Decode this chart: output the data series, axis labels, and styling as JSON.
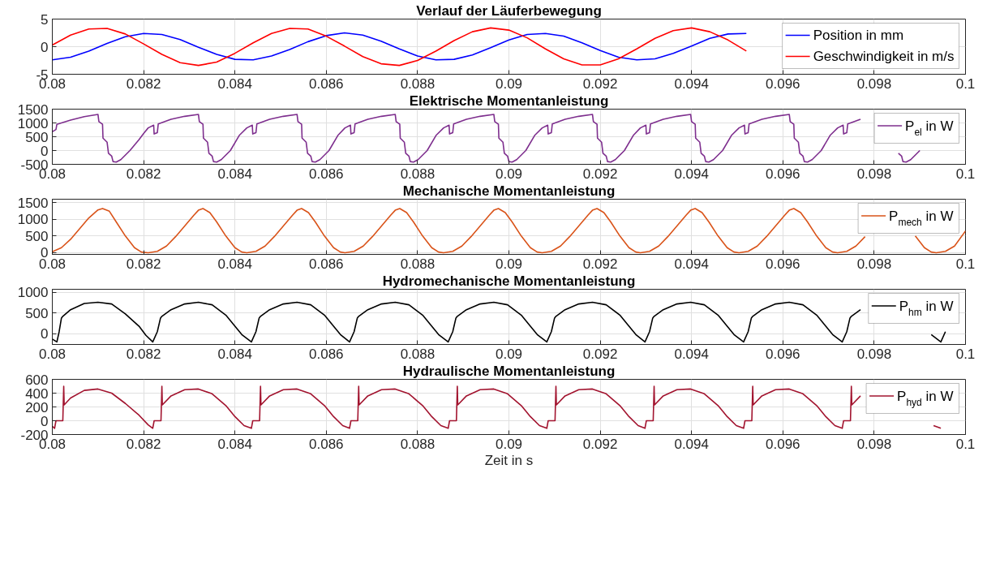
{
  "chart_data": [
    {
      "type": "line",
      "title": "Verlauf der Läuferbewegung",
      "xlim": [
        0.08,
        0.1
      ],
      "xticks": [
        0.08,
        0.082,
        0.084,
        0.086,
        0.088,
        0.09,
        0.092,
        0.094,
        0.096,
        0.098,
        0.1
      ],
      "ylim": [
        -5,
        5
      ],
      "yticks": [
        -5,
        0,
        5
      ],
      "grid": true,
      "legend": "top right",
      "x": [
        0.08,
        0.0804,
        0.0808,
        0.0812,
        0.0816,
        0.082,
        0.0824,
        0.0828,
        0.0832,
        0.0836,
        0.084,
        0.0844,
        0.0848,
        0.0852,
        0.0856,
        0.086,
        0.0864,
        0.0868,
        0.0872,
        0.0876,
        0.088,
        0.0884,
        0.0888,
        0.0892,
        0.0896,
        0.09,
        0.0904,
        0.0908,
        0.0912,
        0.0916,
        0.092,
        0.0924,
        0.0928,
        0.0932,
        0.0936,
        0.094,
        0.0944,
        0.0948,
        0.0952
      ],
      "series": [
        {
          "name": "Position in mm",
          "color": "#0000ff",
          "values": [
            -2.4,
            -1.9,
            -0.8,
            0.6,
            1.8,
            2.4,
            2.2,
            1.3,
            -0.1,
            -1.4,
            -2.3,
            -2.4,
            -1.7,
            -0.5,
            0.9,
            2.0,
            2.5,
            2.1,
            1.0,
            -0.4,
            -1.7,
            -2.4,
            -2.3,
            -1.5,
            -0.2,
            1.2,
            2.2,
            2.4,
            1.9,
            0.7,
            -0.7,
            -1.9,
            -2.4,
            -2.2,
            -1.2,
            0.1,
            1.5,
            2.3,
            2.4
          ]
        },
        {
          "name": "Geschwindigkeit in m/s",
          "color": "#ff0000",
          "values": [
            0.3,
            2.1,
            3.2,
            3.3,
            2.3,
            0.5,
            -1.4,
            -2.9,
            -3.4,
            -2.8,
            -1.2,
            0.7,
            2.4,
            3.3,
            3.2,
            1.9,
            0.1,
            -1.8,
            -3.1,
            -3.4,
            -2.5,
            -0.8,
            1.1,
            2.7,
            3.4,
            3.0,
            1.6,
            -0.4,
            -2.2,
            -3.3,
            -3.3,
            -2.2,
            -0.4,
            1.5,
            2.9,
            3.4,
            2.7,
            1.2,
            -0.8
          ]
        }
      ]
    },
    {
      "type": "line",
      "title": "Elektrische Momentanleistung",
      "xlim": [
        0.08,
        0.1
      ],
      "xticks": [
        0.08,
        0.082,
        0.084,
        0.086,
        0.088,
        0.09,
        0.092,
        0.094,
        0.096,
        0.098,
        0.1
      ],
      "ylim": [
        -500,
        1500
      ],
      "yticks": [
        -500,
        0,
        500,
        1000,
        1500
      ],
      "grid": true,
      "legend": "top right",
      "series": [
        {
          "name": "P$_{el}$ in W",
          "color": "#7e2f8e",
          "x": [
            0.08,
            0.08008,
            0.0801,
            0.0804,
            0.0807,
            0.081,
            0.08102,
            0.0811,
            0.08111,
            0.0812,
            0.08123,
            0.0813,
            0.08133,
            0.0814,
            0.0815,
            0.0817,
            0.0819,
            0.082,
            0.0821,
            0.08222,
            0.08223,
            0.0823,
            0.08232,
            0.0826,
            0.0829,
            0.0832,
            0.08322,
            0.0833,
            0.08331,
            0.0834,
            0.08343,
            0.0835,
            0.08353,
            0.0836,
            0.0837,
            0.0839,
            0.0841,
            0.08426,
            0.08438,
            0.08439,
            0.08446,
            0.08448,
            0.08476,
            0.08506,
            0.08536,
            0.08538,
            0.08546,
            0.08547,
            0.08556,
            0.08559,
            0.08566,
            0.08569,
            0.08576,
            0.08586,
            0.08606,
            0.08626,
            0.08641,
            0.08653,
            0.08654,
            0.08661,
            0.08663,
            0.08691,
            0.08721,
            0.08751,
            0.08753,
            0.08761,
            0.08762,
            0.08771,
            0.08774,
            0.08781,
            0.08784,
            0.08791,
            0.08801,
            0.08821,
            0.08841,
            0.08857,
            0.08869,
            0.0887,
            0.08877,
            0.08879,
            0.08907,
            0.08937,
            0.08967,
            0.08969,
            0.08977,
            0.08978,
            0.08987,
            0.0899,
            0.08997,
            0.09,
            0.09007,
            0.09017,
            0.09037,
            0.09057,
            0.09073,
            0.09085,
            0.09086,
            0.09093,
            0.09095,
            0.09123,
            0.09153,
            0.09183,
            0.09185,
            0.09193,
            0.09194,
            0.09203,
            0.09206,
            0.09213,
            0.09216,
            0.09223,
            0.09233,
            0.09253,
            0.09273,
            0.09288,
            0.093,
            0.09301,
            0.09308,
            0.0931,
            0.09338,
            0.09368,
            0.09398,
            0.094,
            0.09408,
            0.09409,
            0.09418,
            0.09421,
            0.09428,
            0.09431,
            0.09438,
            0.09448,
            0.09468,
            0.09488,
            0.09504,
            0.09516,
            0.09517,
            0.09524,
            0.09526,
            0.09554,
            0.09584,
            0.09614,
            0.09616,
            0.09624,
            0.09625,
            0.09634,
            0.09637,
            0.09644,
            0.09647,
            0.09654,
            0.09664,
            0.09684,
            0.09704,
            0.0972,
            0.09732,
            0.09733,
            0.0974,
            0.09742,
            0.0977,
            0.098,
            0.0983,
            0.09832,
            0.0984,
            0.09841,
            0.0985,
            0.09853,
            0.0986,
            0.09863,
            0.0987,
            0.0988,
            0.099
          ],
          "values": [
            680,
            760,
            950,
            1100,
            1230,
            1310,
            1050,
            950,
            450,
            300,
            -100,
            -200,
            -400,
            -420,
            -330,
            0,
            400,
            620,
            820,
            920,
            600,
            650,
            960,
            1130,
            1240,
            1310,
            1050,
            950,
            450,
            300,
            -100,
            -200,
            -400,
            -420,
            -330,
            0,
            560,
            820,
            920,
            600,
            650,
            960,
            1130,
            1240,
            1310,
            1050,
            950,
            450,
            300,
            -100,
            -200,
            -400,
            -420,
            -330,
            0,
            560,
            820,
            920,
            600,
            650,
            960,
            1130,
            1240,
            1310,
            1050,
            950,
            450,
            300,
            -100,
            -200,
            -400,
            -420,
            -330,
            0,
            560,
            820,
            920,
            600,
            650,
            960,
            1130,
            1240,
            1310,
            1050,
            950,
            450,
            300,
            -100,
            -200,
            -400,
            -420,
            -330,
            0,
            560,
            820,
            920,
            600,
            650,
            960,
            1130,
            1240,
            1310,
            1050,
            950,
            450,
            300,
            -100,
            -200,
            -400,
            -420,
            -330,
            0,
            560,
            820,
            920,
            600,
            650,
            960,
            1130,
            1240,
            1310,
            1050,
            950,
            450,
            300,
            -100,
            -200,
            -400,
            -420,
            -330,
            0,
            560,
            820,
            920,
            600,
            650,
            960,
            1130,
            1240,
            1310,
            1050,
            950,
            450,
            300,
            -100,
            -200,
            -400,
            -420,
            -330,
            0,
            560,
            820,
            920,
            600,
            650,
            960,
            1130,
            null,
            null,
            null,
            null,
            null,
            null,
            -100,
            -200,
            -400,
            -420,
            -330,
            0
          ]
        }
      ]
    },
    {
      "type": "line",
      "title": "Mechanische Momentanleistung",
      "xlim": [
        0.08,
        0.1
      ],
      "xticks": [
        0.08,
        0.082,
        0.084,
        0.086,
        0.088,
        0.09,
        0.092,
        0.094,
        0.096,
        0.098,
        0.1
      ],
      "ylim": [
        -50,
        1600
      ],
      "yticks": [
        0,
        500,
        1000,
        1500
      ],
      "grid": true,
      "legend": "top right",
      "series": [
        {
          "name": "P$_{mech}$ in W",
          "color": "#d95319",
          "x": [
            0.08,
            0.0802,
            0.0804,
            0.0806,
            0.0808,
            0.081,
            0.0811,
            0.08125,
            0.0814,
            0.0816,
            0.0818,
            0.08195,
            0.0821,
            0.0823,
            0.0825,
            0.0827,
            0.0829,
            0.0831,
            0.0832,
            0.0833,
            0.08345,
            0.0836,
            0.0838,
            0.084,
            0.08415,
            0.08426,
            0.08446,
            0.08466,
            0.08486,
            0.08506,
            0.08526,
            0.08536,
            0.08546,
            0.08561,
            0.08576,
            0.08596,
            0.08616,
            0.08631,
            0.08641,
            0.08661,
            0.08681,
            0.08701,
            0.08721,
            0.08741,
            0.08751,
            0.08761,
            0.08776,
            0.08791,
            0.08811,
            0.08831,
            0.08846,
            0.08857,
            0.08877,
            0.08897,
            0.08917,
            0.08937,
            0.08957,
            0.08967,
            0.08977,
            0.08992,
            0.09007,
            0.09027,
            0.09047,
            0.09062,
            0.09073,
            0.09093,
            0.09113,
            0.09133,
            0.09153,
            0.09173,
            0.09183,
            0.09193,
            0.09208,
            0.09223,
            0.09243,
            0.09263,
            0.09278,
            0.09288,
            0.09308,
            0.09328,
            0.09348,
            0.09368,
            0.09388,
            0.09398,
            0.09408,
            0.09423,
            0.09438,
            0.09458,
            0.09478,
            0.09493,
            0.09504,
            0.09524,
            0.09544,
            0.09564,
            0.09584,
            0.09604,
            0.09614,
            0.09624,
            0.09639,
            0.09654,
            0.09674,
            0.09694,
            0.09709,
            0.0972,
            0.0974,
            0.0976,
            0.0978,
            0.098,
            0.0982,
            0.0983,
            0.0984,
            0.09855,
            0.0987,
            0.0989,
            0.0991,
            0.09925,
            0.09936,
            0.09956,
            0.09976,
            0.1
          ],
          "values": [
            30,
            150,
            400,
            720,
            1040,
            1280,
            1320,
            1240,
            920,
            500,
            150,
            20,
            0,
            40,
            200,
            480,
            800,
            1120,
            1270,
            1320,
            1200,
            920,
            500,
            150,
            20,
            0,
            40,
            200,
            480,
            800,
            1120,
            1270,
            1320,
            1200,
            920,
            500,
            150,
            20,
            0,
            40,
            200,
            480,
            800,
            1120,
            1270,
            1320,
            1200,
            920,
            500,
            150,
            20,
            0,
            40,
            200,
            480,
            800,
            1120,
            1270,
            1320,
            1200,
            920,
            500,
            150,
            20,
            0,
            40,
            200,
            480,
            800,
            1120,
            1270,
            1320,
            1200,
            920,
            500,
            150,
            20,
            0,
            40,
            200,
            480,
            800,
            1120,
            1270,
            1320,
            1200,
            920,
            500,
            150,
            20,
            0,
            40,
            200,
            480,
            800,
            1120,
            1270,
            1320,
            1200,
            920,
            500,
            150,
            20,
            0,
            40,
            200,
            480,
            null,
            null,
            null,
            null,
            null,
            null,
            500,
            150,
            20,
            0,
            40,
            200,
            650
          ]
        }
      ]
    },
    {
      "type": "line",
      "title": "Hydromechanische Momentanleistung",
      "xlim": [
        0.08,
        0.1
      ],
      "xticks": [
        0.08,
        0.082,
        0.084,
        0.086,
        0.088,
        0.09,
        0.092,
        0.094,
        0.096,
        0.098,
        0.1
      ],
      "ylim": [
        -260,
        1075
      ],
      "yticks": [
        0,
        500,
        1000
      ],
      "grid": true,
      "legend": "top right",
      "series": [
        {
          "name": "P$_{hm}$ in W",
          "color": "#000000",
          "x": [
            0.08,
            0.0801,
            0.08015,
            0.0802,
            0.08023,
            0.0804,
            0.0807,
            0.081,
            0.0813,
            0.0816,
            0.0819,
            0.08205,
            0.0822,
            0.0823,
            0.08237,
            0.0824,
            0.0826,
            0.0829,
            0.0832,
            0.0835,
            0.0838,
            0.084,
            0.08415,
            0.08436,
            0.08446,
            0.08453,
            0.08456,
            0.08476,
            0.08506,
            0.08536,
            0.08566,
            0.08596,
            0.08616,
            0.08631,
            0.08651,
            0.08661,
            0.08668,
            0.08671,
            0.08691,
            0.08721,
            0.08751,
            0.08781,
            0.08811,
            0.08831,
            0.08846,
            0.08867,
            0.08877,
            0.08884,
            0.08887,
            0.08907,
            0.08937,
            0.08967,
            0.08997,
            0.09027,
            0.09047,
            0.09062,
            0.09083,
            0.09093,
            0.091,
            0.09103,
            0.09123,
            0.09153,
            0.09183,
            0.09213,
            0.09243,
            0.09263,
            0.09278,
            0.09298,
            0.09308,
            0.09315,
            0.09318,
            0.09338,
            0.09368,
            0.09398,
            0.09428,
            0.09458,
            0.09478,
            0.09493,
            0.09514,
            0.09524,
            0.09531,
            0.09534,
            0.09554,
            0.09584,
            0.09614,
            0.09644,
            0.09674,
            0.09694,
            0.09709,
            0.0973,
            0.0974,
            0.09747,
            0.0975,
            0.0977,
            0.098,
            0.0983,
            0.0986,
            0.0989,
            0.0991,
            0.09925,
            0.09946,
            0.09956
          ],
          "values": [
            -130,
            -200,
            50,
            380,
            420,
            580,
            730,
            760,
            720,
            480,
            180,
            -40,
            -200,
            50,
            380,
            420,
            580,
            720,
            760,
            700,
            450,
            180,
            -20,
            -200,
            50,
            380,
            420,
            580,
            720,
            760,
            700,
            450,
            180,
            -20,
            -200,
            50,
            380,
            420,
            580,
            720,
            760,
            700,
            450,
            180,
            -20,
            -200,
            50,
            380,
            420,
            580,
            720,
            760,
            700,
            450,
            180,
            -20,
            -200,
            50,
            380,
            420,
            580,
            720,
            760,
            700,
            450,
            180,
            -20,
            -200,
            50,
            380,
            420,
            580,
            720,
            760,
            700,
            450,
            180,
            -20,
            -200,
            50,
            380,
            420,
            580,
            720,
            760,
            700,
            450,
            180,
            -20,
            -200,
            50,
            380,
            420,
            580,
            null,
            null,
            null,
            null,
            null,
            -20,
            -200,
            50
          ]
        }
      ]
    },
    {
      "type": "line",
      "title": "Hydraulische Momentanleistung",
      "xlabel": "Zeit in s",
      "xlim": [
        0.08,
        0.1
      ],
      "xticks": [
        0.08,
        0.082,
        0.084,
        0.086,
        0.088,
        0.09,
        0.092,
        0.094,
        0.096,
        0.098,
        0.1
      ],
      "ylim": [
        -200,
        600
      ],
      "yticks": [
        -200,
        0,
        200,
        400,
        600
      ],
      "grid": true,
      "legend": "top right",
      "series": [
        {
          "name": "P$_{hyd}$ in W",
          "color": "#a2142f",
          "x": [
            0.08,
            0.08005,
            0.08008,
            0.08023,
            0.08025,
            0.08026,
            0.0804,
            0.0807,
            0.081,
            0.0813,
            0.0816,
            0.0819,
            0.0821,
            0.0822,
            0.08223,
            0.08238,
            0.0824,
            0.08241,
            0.0826,
            0.0829,
            0.0832,
            0.0835,
            0.0838,
            0.084,
            0.0842,
            0.08436,
            0.08439,
            0.08454,
            0.08456,
            0.08457,
            0.08476,
            0.08506,
            0.08536,
            0.08566,
            0.08596,
            0.08616,
            0.08636,
            0.08651,
            0.08654,
            0.08669,
            0.08671,
            0.08672,
            0.08691,
            0.08721,
            0.08751,
            0.08781,
            0.08811,
            0.08831,
            0.08851,
            0.08867,
            0.0887,
            0.08885,
            0.08887,
            0.08888,
            0.08907,
            0.08937,
            0.08967,
            0.08997,
            0.09027,
            0.09047,
            0.09067,
            0.09083,
            0.09086,
            0.09101,
            0.09103,
            0.09104,
            0.09123,
            0.09153,
            0.09183,
            0.09213,
            0.09243,
            0.09263,
            0.09283,
            0.09298,
            0.09301,
            0.09316,
            0.09318,
            0.09319,
            0.09338,
            0.09368,
            0.09398,
            0.09428,
            0.09458,
            0.09478,
            0.09498,
            0.09514,
            0.09517,
            0.09532,
            0.09534,
            0.09535,
            0.09554,
            0.09584,
            0.09614,
            0.09644,
            0.09674,
            0.09694,
            0.09714,
            0.0973,
            0.09733,
            0.09748,
            0.0975,
            0.09751,
            0.0977,
            0.098,
            0.0983,
            0.0986,
            0.0989,
            0.0991,
            0.0993,
            0.09946
          ],
          "values": [
            -80,
            -110,
            0,
            0,
            500,
            230,
            330,
            440,
            460,
            400,
            250,
            80,
            -60,
            -110,
            0,
            0,
            500,
            230,
            360,
            450,
            460,
            390,
            220,
            60,
            -70,
            -110,
            0,
            0,
            500,
            230,
            360,
            450,
            460,
            390,
            220,
            60,
            -70,
            -110,
            0,
            0,
            500,
            230,
            360,
            450,
            460,
            390,
            220,
            60,
            -70,
            -110,
            0,
            0,
            500,
            230,
            360,
            450,
            460,
            390,
            220,
            60,
            -70,
            -110,
            0,
            0,
            500,
            230,
            360,
            450,
            460,
            390,
            220,
            60,
            -70,
            -110,
            0,
            0,
            500,
            230,
            360,
            450,
            460,
            390,
            220,
            60,
            -70,
            -110,
            0,
            0,
            500,
            230,
            360,
            450,
            460,
            390,
            220,
            60,
            -70,
            -110,
            0,
            0,
            500,
            230,
            360,
            null,
            null,
            null,
            null,
            null,
            -70,
            -110
          ]
        }
      ]
    }
  ]
}
